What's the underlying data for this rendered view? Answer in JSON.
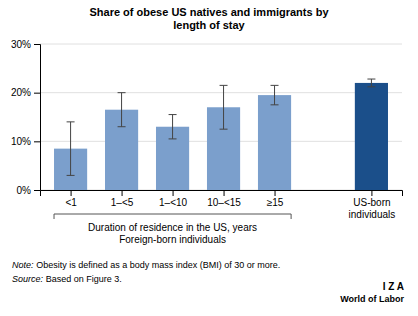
{
  "chart_data": {
    "type": "bar",
    "title": "Share of obese US natives and immigrants by\nlength of stay",
    "categories": [
      "<1",
      "1–<5",
      "1–<10",
      "10–<15",
      "≥15",
      "US-born\nindividuals"
    ],
    "values": [
      8.5,
      16.5,
      13.0,
      17.0,
      19.5,
      22.0
    ],
    "errors": [
      5.5,
      3.5,
      2.5,
      4.5,
      2.0,
      0.8
    ],
    "colors": [
      "#7B9FCC",
      "#7B9FCC",
      "#7B9FCC",
      "#7B9FCC",
      "#7B9FCC",
      "#1B4F8A"
    ],
    "ylim": [
      0,
      30
    ],
    "yticks": [
      {
        "value": 0,
        "label": "0%"
      },
      {
        "value": 10,
        "label": "10%"
      },
      {
        "value": 20,
        "label": "20%"
      },
      {
        "value": 30,
        "label": "30%"
      }
    ],
    "grid": true,
    "bracket_label": [
      "Duration of residence in the US, years",
      "Foreign-born individuals"
    ],
    "note": [
      "Note:",
      "Obesity is defined as a body mass index (BMI) of 30 or more."
    ],
    "source": [
      "Source:",
      "Based on Figure 3."
    ],
    "logo": [
      "I  Z  A",
      "World of Labor"
    ]
  }
}
